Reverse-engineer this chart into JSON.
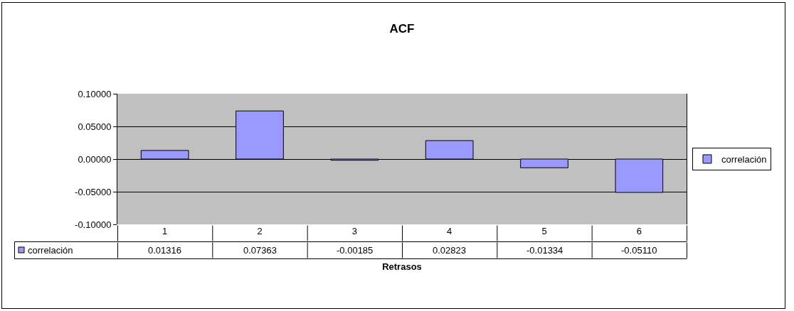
{
  "chart_data": {
    "type": "bar",
    "title": "ACF",
    "xlabel": "Retrasos",
    "categories": [
      "1",
      "2",
      "3",
      "4",
      "5",
      "6"
    ],
    "series": [
      {
        "name": "correlación",
        "color": "#9999ff",
        "values": [
          0.01316,
          0.07363,
          -0.00185,
          0.02823,
          -0.01334,
          -0.0511
        ],
        "value_labels": [
          "0.01316",
          "0.07363",
          "-0.00185",
          "0.02823",
          "-0.01334",
          "-0.05110"
        ]
      }
    ],
    "ylim": [
      -0.1,
      0.1
    ],
    "yticks": [
      {
        "value": -0.1,
        "label": "-0.10000"
      },
      {
        "value": -0.05,
        "label": "-0.05000"
      },
      {
        "value": 0,
        "label": "0.00000"
      },
      {
        "value": 0.05,
        "label": "0.05000"
      },
      {
        "value": 0.1,
        "label": "0.10000"
      }
    ],
    "grid": "y",
    "legend": "right"
  }
}
